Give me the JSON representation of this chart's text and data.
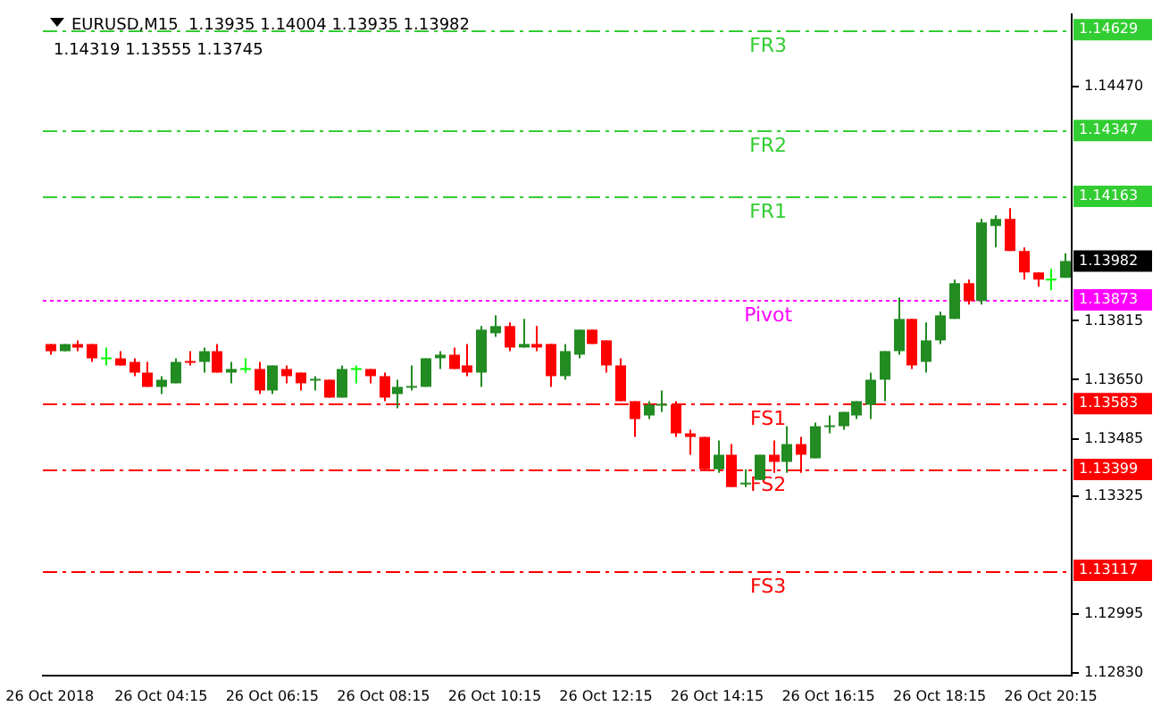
{
  "chart_data": {
    "type": "candlestick",
    "title": "EURUSD,M15  1.13935 1.14004 1.13935 1.13982",
    "subtitle": "1.14319 1.13555 1.13745",
    "categories": [
      "26 Oct 2018",
      null,
      null,
      null,
      null,
      null,
      null,
      null,
      "26 Oct 04:15",
      null,
      null,
      null,
      null,
      null,
      null,
      null,
      "26 Oct 06:15",
      null,
      null,
      null,
      null,
      null,
      null,
      null,
      "26 Oct 08:15",
      null,
      null,
      null,
      null,
      null,
      null,
      null,
      "26 Oct 10:15",
      null,
      null,
      null,
      null,
      null,
      null,
      null,
      "26 Oct 12:15",
      null,
      null,
      null,
      null,
      null,
      null,
      null,
      "26 Oct 14:15",
      null,
      null,
      null,
      null,
      null,
      null,
      null,
      "26 Oct 16:15",
      null,
      null,
      null,
      null,
      null,
      null,
      null,
      "26 Oct 18:15",
      null,
      null,
      null,
      null,
      null,
      null,
      null,
      "26 Oct 20:15",
      null
    ],
    "ohlc": [
      [
        1.1375,
        1.1375,
        1.1372,
        1.1373
      ],
      [
        1.1373,
        1.1375,
        1.1373,
        1.1375
      ],
      [
        1.1375,
        1.1376,
        1.1373,
        1.1374
      ],
      [
        1.1375,
        1.1375,
        1.137,
        1.1371
      ],
      [
        1.1371,
        1.1374,
        1.1369,
        1.1371
      ],
      [
        1.1371,
        1.1373,
        1.1369,
        1.1369
      ],
      [
        1.137,
        1.1371,
        1.1366,
        1.1367
      ],
      [
        1.1367,
        1.137,
        1.1363,
        1.1363
      ],
      [
        1.1363,
        1.1366,
        1.1361,
        1.1365
      ],
      [
        1.1364,
        1.1371,
        1.1364,
        1.137
      ],
      [
        1.137,
        1.1373,
        1.1369,
        1.137
      ],
      [
        1.137,
        1.1374,
        1.1367,
        1.1373
      ],
      [
        1.1373,
        1.1375,
        1.1367,
        1.1367
      ],
      [
        1.1367,
        1.137,
        1.1364,
        1.1368
      ],
      [
        1.1368,
        1.1371,
        1.1367,
        1.1368
      ],
      [
        1.1368,
        1.137,
        1.1361,
        1.1362
      ],
      [
        1.1362,
        1.1369,
        1.1361,
        1.1369
      ],
      [
        1.1368,
        1.1369,
        1.1364,
        1.1366
      ],
      [
        1.1367,
        1.1367,
        1.1362,
        1.1364
      ],
      [
        1.1365,
        1.1366,
        1.1362,
        1.1365
      ],
      [
        1.1365,
        1.1365,
        1.136,
        1.136
      ],
      [
        1.136,
        1.1369,
        1.136,
        1.1368
      ],
      [
        1.1368,
        1.1369,
        1.1364,
        1.1368
      ],
      [
        1.1368,
        1.1368,
        1.1364,
        1.1366
      ],
      [
        1.1366,
        1.1367,
        1.1359,
        1.136
      ],
      [
        1.1361,
        1.1365,
        1.1357,
        1.1363
      ],
      [
        1.1363,
        1.1369,
        1.1362,
        1.1363
      ],
      [
        1.1363,
        1.1371,
        1.1363,
        1.1371
      ],
      [
        1.1371,
        1.1373,
        1.1368,
        1.1372
      ],
      [
        1.1372,
        1.1374,
        1.1368,
        1.1368
      ],
      [
        1.1369,
        1.1375,
        1.1366,
        1.1367
      ],
      [
        1.1367,
        1.138,
        1.1363,
        1.1379
      ],
      [
        1.1378,
        1.1383,
        1.1377,
        1.138
      ],
      [
        1.138,
        1.1381,
        1.1373,
        1.1374
      ],
      [
        1.1374,
        1.1382,
        1.1374,
        1.1375
      ],
      [
        1.1375,
        1.138,
        1.1373,
        1.1374
      ],
      [
        1.1375,
        1.1375,
        1.1363,
        1.1366
      ],
      [
        1.1366,
        1.1375,
        1.1365,
        1.1373
      ],
      [
        1.1372,
        1.1379,
        1.1371,
        1.1379
      ],
      [
        1.1379,
        1.1379,
        1.1375,
        1.1375
      ],
      [
        1.1376,
        1.1376,
        1.1367,
        1.1369
      ],
      [
        1.1369,
        1.1371,
        1.1359,
        1.1359
      ],
      [
        1.1359,
        1.1359,
        1.1349,
        1.1354
      ],
      [
        1.1355,
        1.1359,
        1.1354,
        1.1358
      ],
      [
        1.1358,
        1.1362,
        1.1356,
        1.1358
      ],
      [
        1.1358,
        1.1359,
        1.1349,
        1.135
      ],
      [
        1.135,
        1.1351,
        1.1344,
        1.1349
      ],
      [
        1.1349,
        1.1349,
        1.134,
        1.134
      ],
      [
        1.134,
        1.1348,
        1.1339,
        1.1344
      ],
      [
        1.1344,
        1.1347,
        1.1335,
        1.1335
      ],
      [
        1.1336,
        1.134,
        1.1335,
        1.1336
      ],
      [
        1.1337,
        1.1344,
        1.1337,
        1.1344
      ],
      [
        1.1344,
        1.1348,
        1.1339,
        1.1342
      ],
      [
        1.1342,
        1.1352,
        1.1339,
        1.1347
      ],
      [
        1.1347,
        1.1349,
        1.1339,
        1.1344
      ],
      [
        1.1343,
        1.1353,
        1.1343,
        1.1352
      ],
      [
        1.1352,
        1.1355,
        1.135,
        1.1352
      ],
      [
        1.1352,
        1.1356,
        1.1351,
        1.1356
      ],
      [
        1.1355,
        1.1359,
        1.1354,
        1.1359
      ],
      [
        1.1358,
        1.1367,
        1.1354,
        1.1365
      ],
      [
        1.1365,
        1.1373,
        1.1359,
        1.1373
      ],
      [
        1.1373,
        1.1388,
        1.1372,
        1.1382
      ],
      [
        1.1382,
        1.1382,
        1.1368,
        1.1369
      ],
      [
        1.137,
        1.1381,
        1.1367,
        1.1376
      ],
      [
        1.1376,
        1.1384,
        1.1375,
        1.1383
      ],
      [
        1.1382,
        1.1393,
        1.1382,
        1.1392
      ],
      [
        1.1392,
        1.1393,
        1.1386,
        1.1387
      ],
      [
        1.1387,
        1.141,
        1.1386,
        1.1409
      ],
      [
        1.1408,
        1.1411,
        1.1402,
        1.141
      ],
      [
        1.141,
        1.1413,
        1.1401,
        1.1401
      ],
      [
        1.1401,
        1.1402,
        1.1393,
        1.1395
      ],
      [
        1.1395,
        1.1395,
        1.1391,
        1.1393
      ],
      [
        1.1393,
        1.1396,
        1.139,
        1.1393
      ],
      [
        1.13935,
        1.14004,
        1.13935,
        1.13982
      ]
    ],
    "colors": [
      "#ff0000",
      "#228b22",
      "#ff0000",
      "#ff0000",
      "#00ff00",
      "#ff0000",
      "#ff0000",
      "#ff0000",
      "#228b22",
      "#228b22",
      "#ff0000",
      "#228b22",
      "#ff0000",
      "#228b22",
      "#00ff00",
      "#ff0000",
      "#228b22",
      "#ff0000",
      "#ff0000",
      "#228b22",
      "#ff0000",
      "#228b22",
      "#00ff00",
      "#ff0000",
      "#ff0000",
      "#228b22",
      "#228b22",
      "#228b22",
      "#228b22",
      "#ff0000",
      "#ff0000",
      "#228b22",
      "#228b22",
      "#ff0000",
      "#228b22",
      "#ff0000",
      "#ff0000",
      "#228b22",
      "#228b22",
      "#ff0000",
      "#ff0000",
      "#ff0000",
      "#ff0000",
      "#228b22",
      "#228b22",
      "#ff0000",
      "#ff0000",
      "#ff0000",
      "#228b22",
      "#ff0000",
      "#228b22",
      "#228b22",
      "#ff0000",
      "#228b22",
      "#ff0000",
      "#228b22",
      "#228b22",
      "#228b22",
      "#228b22",
      "#228b22",
      "#228b22",
      "#228b22",
      "#ff0000",
      "#228b22",
      "#228b22",
      "#228b22",
      "#ff0000",
      "#228b22",
      "#228b22",
      "#ff0000",
      "#ff0000",
      "#ff0000",
      "#00ff00",
      "#228b22"
    ],
    "ylim": [
      1.12823,
      1.14673
    ],
    "yticks": [
      {
        "value": 1.1447,
        "label": "1.14470"
      },
      {
        "value": 1.13815,
        "label": "1.13815"
      },
      {
        "value": 1.1365,
        "label": "1.13650"
      },
      {
        "value": 1.13485,
        "label": "1.13485"
      },
      {
        "value": 1.13325,
        "label": "1.13325"
      },
      {
        "value": 1.12995,
        "label": "1.12995"
      },
      {
        "value": 1.1283,
        "label": "1.12830"
      }
    ],
    "ref_lines": [
      {
        "axis": "y",
        "value": 1.14629,
        "label": "FR3",
        "color": "#32cd32",
        "line_style": "dashed"
      },
      {
        "axis": "y",
        "value": 1.14347,
        "label": "FR2",
        "color": "#32cd32",
        "line_style": "dashed"
      },
      {
        "axis": "y",
        "value": 1.14163,
        "label": "FR1",
        "color": "#32cd32",
        "line_style": "dashed"
      },
      {
        "axis": "y",
        "value": 1.13873,
        "label": "Pivot",
        "color": "#ff00ff",
        "line_style": "dotted"
      },
      {
        "axis": "y",
        "value": 1.13583,
        "label": "FS1",
        "color": "#ff0000",
        "line_style": "dashed"
      },
      {
        "axis": "y",
        "value": 1.13399,
        "label": "FS2",
        "color": "#ff0000",
        "line_style": "dashed"
      },
      {
        "axis": "y",
        "value": 1.13117,
        "label": "FS3",
        "color": "#ff0000",
        "line_style": "dashed"
      }
    ],
    "annotations": [
      "1.14629",
      "1.14347",
      "1.14163",
      "1.13873",
      "1.13583",
      "1.13399",
      "1.13117",
      "1.13982"
    ],
    "grid": false,
    "legend": false
  }
}
